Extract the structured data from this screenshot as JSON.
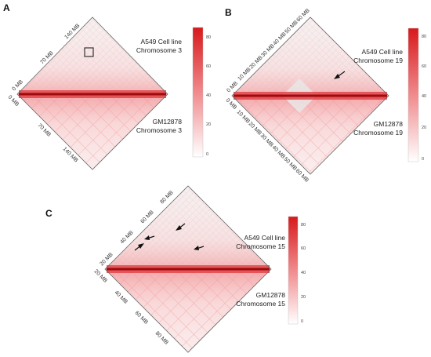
{
  "figure": {
    "panels": [
      {
        "letter": "A",
        "top_label_line1": "A549 Cell line",
        "top_label_line2": "Chromosome 3",
        "bottom_label_line1": "GM12878",
        "bottom_label_line2": "Chromosome 3",
        "top_ticks": [
          "0 MB",
          "70 MB",
          "140 MB"
        ],
        "bottom_ticks": [
          "0 MB",
          "70 MB",
          "140 MB"
        ],
        "colorbar_ticks": [
          "80",
          "60",
          "40",
          "20",
          "0"
        ],
        "annotation": "box"
      },
      {
        "letter": "B",
        "top_label_line1": "A549 Cell line",
        "top_label_line2": "Chromosome 19",
        "bottom_label_line1": "GM12878",
        "bottom_label_line2": "Chromosome 19",
        "top_ticks": [
          "0 MB",
          "10 MB",
          "20 MB",
          "30 MB",
          "40 MB",
          "50 MB",
          "60 MB"
        ],
        "bottom_ticks": [
          "0 MB",
          "10 MB",
          "20 MB",
          "30 MB",
          "40 MB",
          "50 MB",
          "60 MB"
        ],
        "colorbar_ticks": [
          "80",
          "60",
          "40",
          "20",
          "0"
        ],
        "annotation": "arrow"
      },
      {
        "letter": "C",
        "top_label_line1": "A549 Cell line",
        "top_label_line2": "Chromosome 15",
        "bottom_label_line1": "GM12878",
        "bottom_label_line2": "Chromosome 15",
        "top_ticks": [
          "20 MB",
          "40 MB",
          "60 MB",
          "80 MB"
        ],
        "bottom_ticks": [
          "20 MB",
          "40 MB",
          "60 MB",
          "80 MB"
        ],
        "colorbar_ticks": [
          "80",
          "60",
          "40",
          "20",
          "0"
        ],
        "annotation": "four-arrows"
      }
    ],
    "colors": {
      "high": "#d7191c",
      "mid": "#f4a3a5",
      "low": "#fbe9ea",
      "background": "#ffffff",
      "frame": "#666666"
    }
  }
}
